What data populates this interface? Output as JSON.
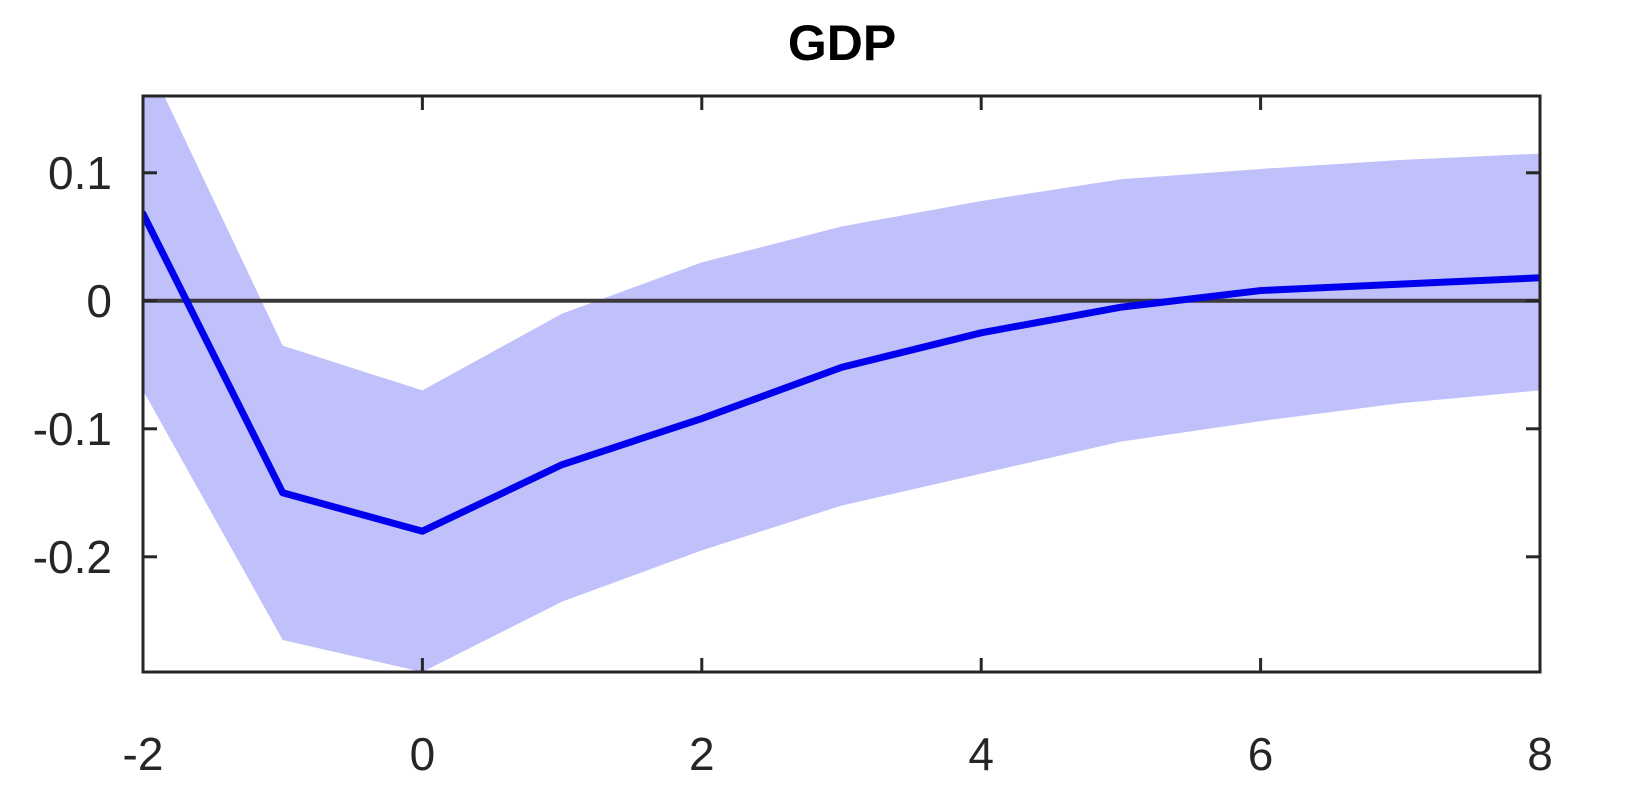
{
  "chart_data": {
    "type": "line",
    "title": "GDP",
    "xlabel": "",
    "ylabel": "",
    "xlim": [
      -2,
      8
    ],
    "ylim": [
      -0.29,
      0.16
    ],
    "x_ticks": [
      -2,
      0,
      2,
      4,
      6,
      8
    ],
    "y_ticks": [
      -0.2,
      -0.1,
      0,
      0.1
    ],
    "x_tick_labels": [
      "-2",
      "0",
      "2",
      "4",
      "6",
      "8"
    ],
    "y_tick_labels": [
      "-0.2",
      "-0.1",
      "0",
      "0.1"
    ],
    "grid": false,
    "legend": "none",
    "zero_line": 0,
    "x": [
      -2,
      -1,
      0,
      1,
      2,
      3,
      4,
      5,
      6,
      7,
      8
    ],
    "series": [
      {
        "values": [
          0.068,
          -0.15,
          -0.18,
          -0.128,
          -0.092,
          -0.052,
          -0.025,
          -0.005,
          0.008,
          0.013,
          0.018
        ]
      }
    ],
    "band": {
      "upper": [
        0.195,
        -0.035,
        -0.07,
        -0.01,
        0.03,
        0.058,
        0.078,
        0.095,
        0.103,
        0.11,
        0.115
      ],
      "lower": [
        -0.07,
        -0.265,
        -0.29,
        -0.235,
        -0.195,
        -0.16,
        -0.135,
        -0.11,
        -0.094,
        -0.08,
        -0.07
      ]
    },
    "colors": {
      "line": "#0000ee",
      "band": "#c0c0fa",
      "zero_line": "#3a3a3a",
      "axes": "#262626"
    }
  }
}
